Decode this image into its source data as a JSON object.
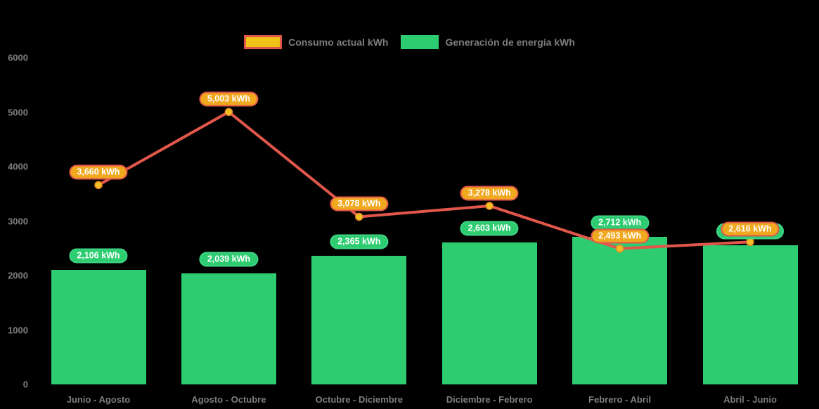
{
  "colors": {
    "background": "#000000",
    "line_red": "#E2574B",
    "label_amber": "#F0A81E",
    "legend_swatch_gold": "#EEC416",
    "series_green": "#2ECC71",
    "marker_gold": "#F6BE26",
    "axis_text": "#7E7E7E",
    "pill_text": "#FFFFFF"
  },
  "legend": {
    "items": [
      {
        "label": "Consumo actual kWh",
        "swatch": "gold fill with red border"
      },
      {
        "label": "Generación de energía kWh",
        "swatch": "green fill"
      }
    ]
  },
  "y_axis": {
    "ticks": [
      "6000",
      "5000",
      "4000",
      "3000",
      "2000",
      "1000",
      "0"
    ],
    "min": 0,
    "max": 6000
  },
  "x_axis": {
    "categories": [
      "Junio - Agosto",
      "Agosto - Octubre",
      "Octubre - Diciembre",
      "Diciembre - Febrero",
      "Febrero - Abril",
      "Abril - Junio"
    ]
  },
  "chart_data": {
    "type": "combo bar + line",
    "title": "",
    "categories": [
      "Junio - Agosto",
      "Agosto - Octubre",
      "Octubre - Diciembre",
      "Diciembre - Febrero",
      "Febrero - Abril",
      "Abril - Junio"
    ],
    "ylim": [
      0,
      6000
    ],
    "grid": false,
    "legend_position": "top-center",
    "series": [
      {
        "name": "Consumo actual kWh",
        "type": "line",
        "color": "#E2574B",
        "values": [
          3660,
          5003,
          3078,
          3278,
          2493,
          2616
        ],
        "labels": [
          "3,660 kWh",
          "5,003 kWh",
          "3,078 kWh",
          "3,278 kWh",
          "2,493 kWh",
          "2,616 kWh"
        ]
      },
      {
        "name": "Generación de energía kWh",
        "type": "bar",
        "color": "#2ECC71",
        "values": [
          2106,
          2039,
          2365,
          2603,
          2712,
          2550
        ],
        "labels": [
          "2,106 kWh",
          "2,039 kWh",
          "2,365 kWh",
          "2,603 kWh",
          "2,712 kWh",
          ""
        ],
        "last_value_estimated": true,
        "last_label_note": "label hidden behind consumption label"
      }
    ]
  }
}
